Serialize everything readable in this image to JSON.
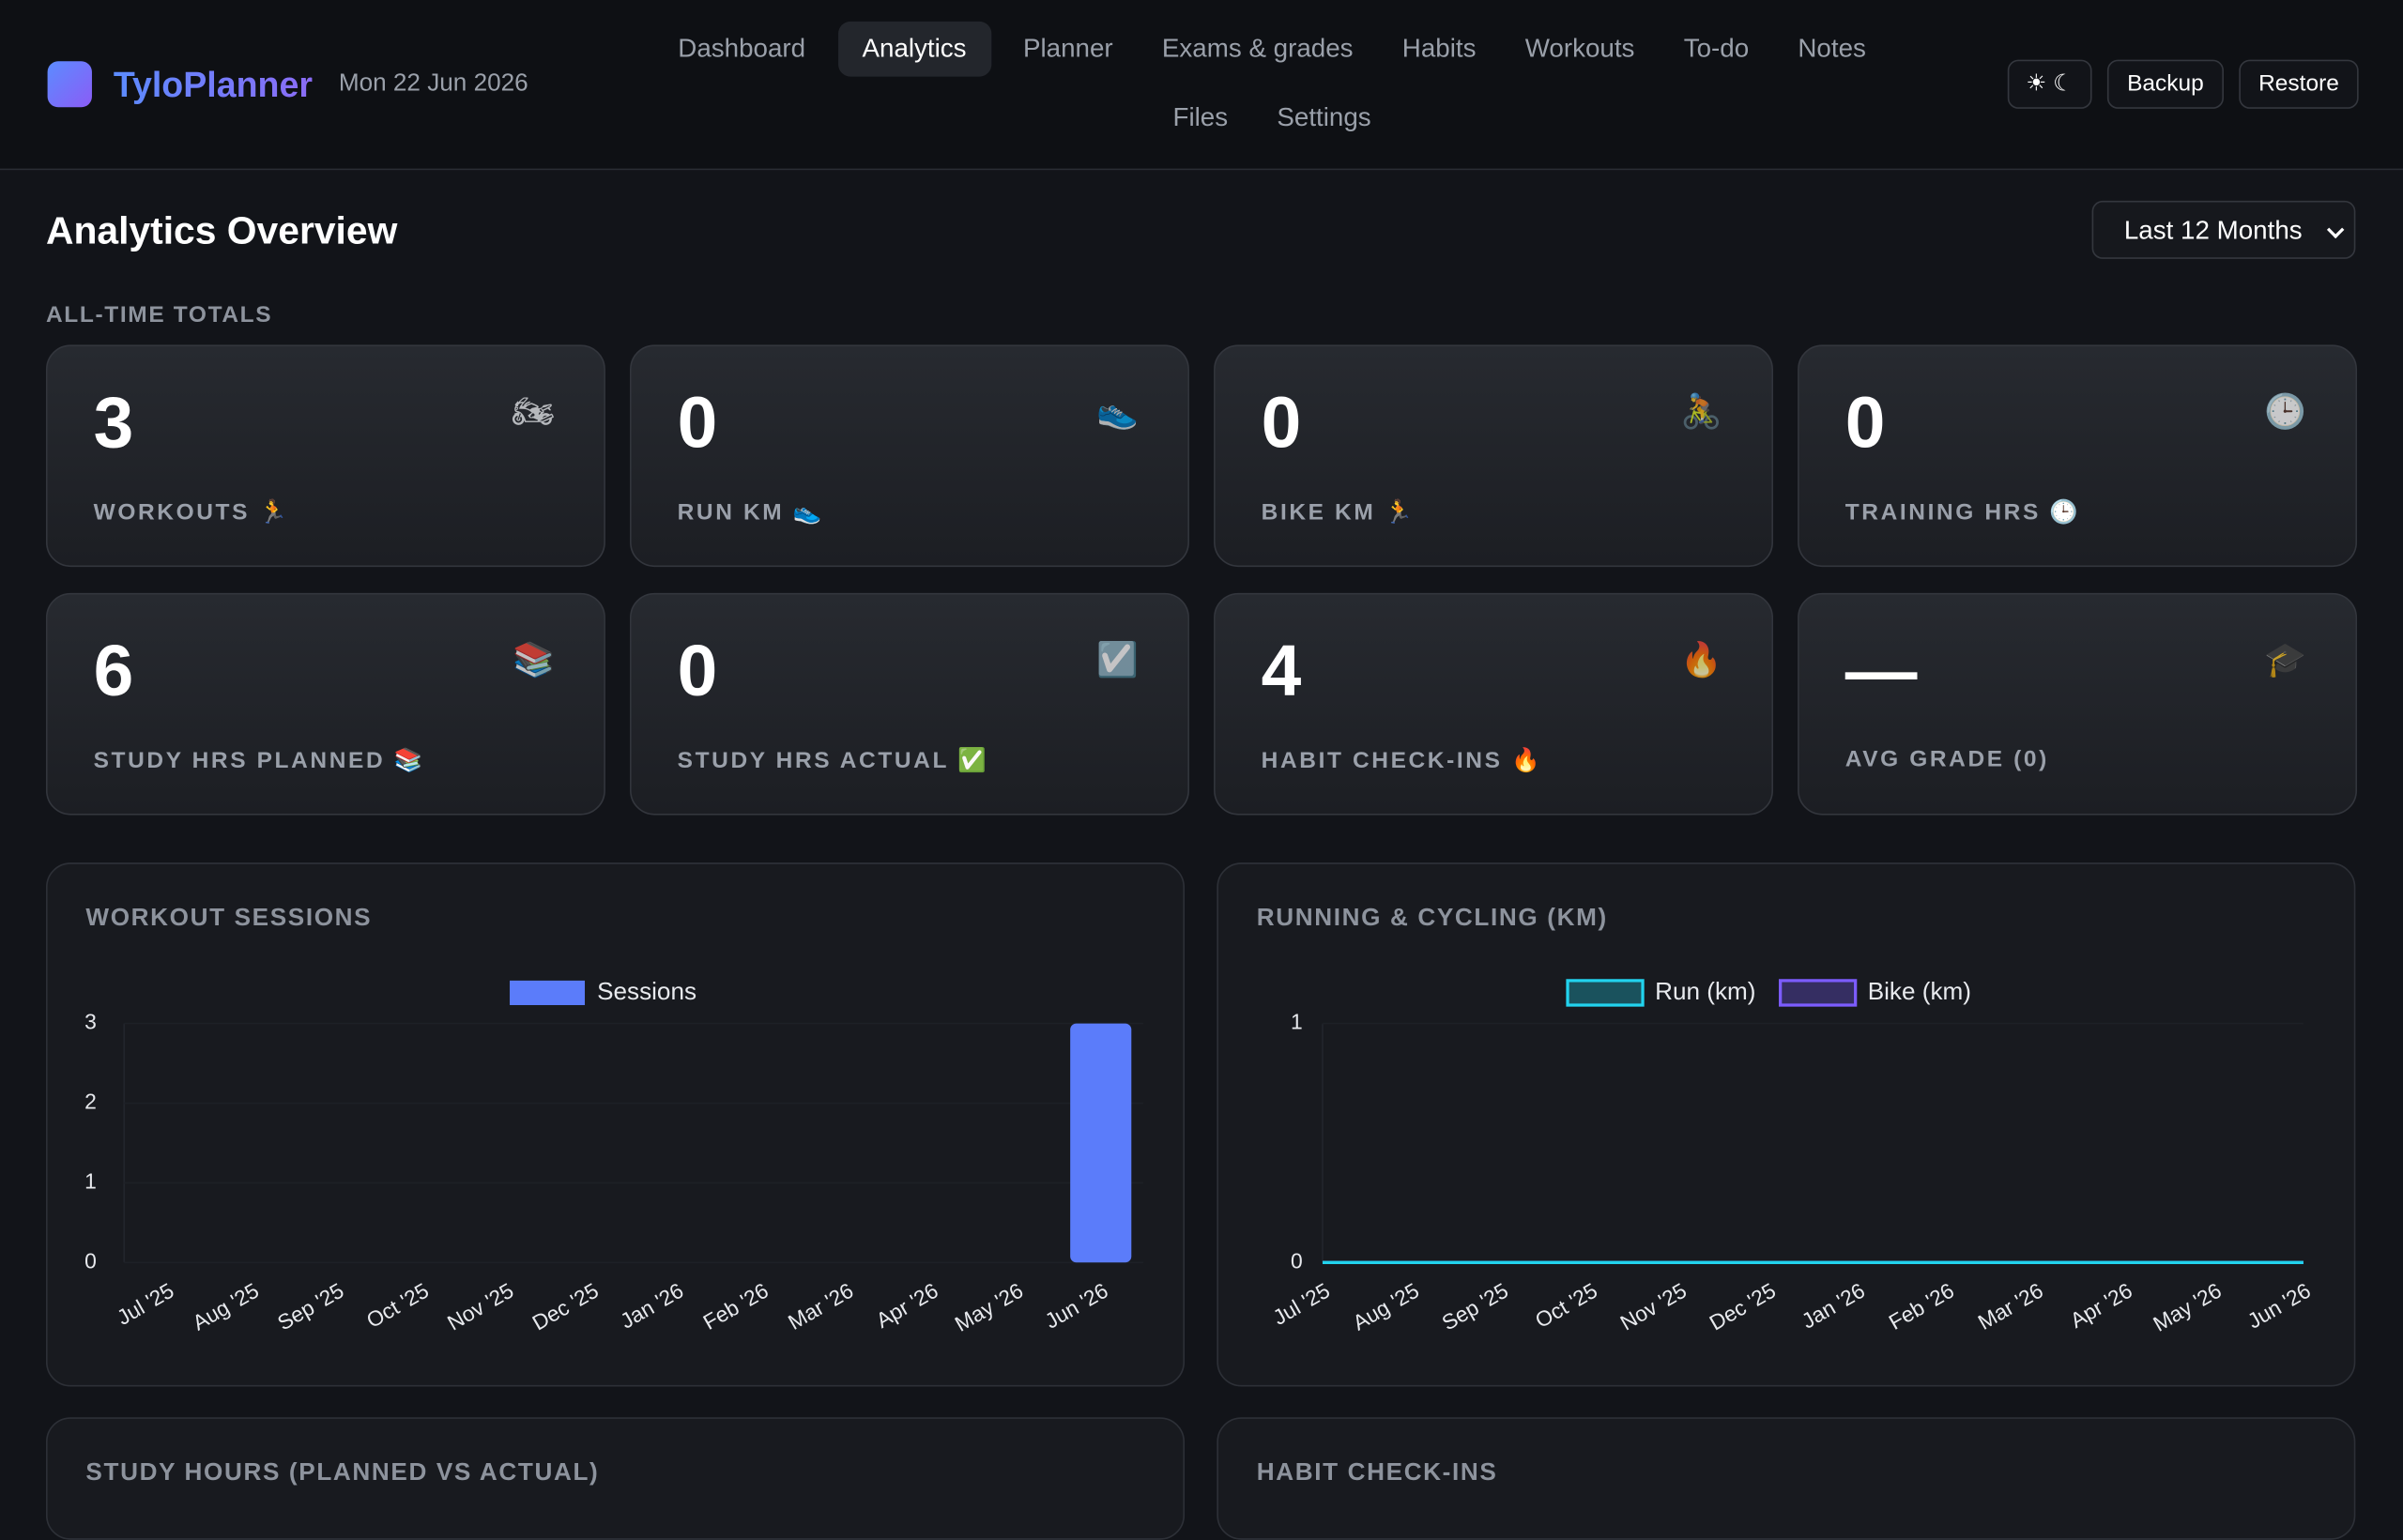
{
  "header": {
    "app_name": "TyloPlanner",
    "date": "Mon 22 Jun 2026",
    "nav": [
      {
        "label": "Dashboard"
      },
      {
        "label": "Analytics",
        "active": true
      },
      {
        "label": "Planner"
      },
      {
        "label": "Exams & grades"
      },
      {
        "label": "Habits"
      },
      {
        "label": "Workouts"
      },
      {
        "label": "To-do"
      },
      {
        "label": "Notes"
      },
      {
        "label": "Files"
      },
      {
        "label": "Settings"
      }
    ],
    "theme_toggle": "☀ ☾",
    "buttons": [
      "Backup",
      "Restore"
    ]
  },
  "page": {
    "title": "Analytics Overview",
    "range": "Last 12 Months",
    "totals_heading": "ALL-TIME TOTALS"
  },
  "totals": [
    {
      "value": 3,
      "label": "WORKOUTS 🏃",
      "icon": "🏍"
    },
    {
      "value": 0,
      "label": "RUN KM 👟",
      "icon": "👟"
    },
    {
      "value": 0,
      "label": "BIKE KM 🏃",
      "icon": "🚴"
    },
    {
      "value": 0,
      "label": "TRAINING HRS 🕒",
      "icon": "🕒"
    },
    {
      "value": 6,
      "label": "STUDY HRS PLANNED 📚",
      "icon": "📚"
    },
    {
      "value": 0,
      "label": "STUDY HRS ACTUAL ✅",
      "icon": "☑️"
    },
    {
      "value": 4,
      "label": "HABIT CHECK-INS 🔥",
      "icon": "🔥"
    },
    {
      "value": "—",
      "label": "AVG GRADE (0)",
      "icon": "🎓"
    }
  ],
  "chart_data": [
    {
      "type": "bar",
      "title": "WORKOUT SESSIONS",
      "categories": [
        "Jul '25",
        "Aug '25",
        "Sep '25",
        "Oct '25",
        "Nov '25",
        "Dec '25",
        "Jan '26",
        "Feb '26",
        "Mar '26",
        "Apr '26",
        "May '26",
        "Jun '26"
      ],
      "series": [
        {
          "name": "Sessions",
          "color": "#5b7cfa",
          "values": [
            0,
            0,
            0,
            0,
            0,
            0,
            0,
            0,
            0,
            0,
            0,
            3
          ]
        }
      ],
      "ylim": [
        0,
        3
      ],
      "yticks": [
        0,
        1,
        2,
        3
      ]
    },
    {
      "type": "line",
      "title": "RUNNING & CYCLING (KM)",
      "categories": [
        "Jul '25",
        "Aug '25",
        "Sep '25",
        "Oct '25",
        "Nov '25",
        "Dec '25",
        "Jan '26",
        "Feb '26",
        "Mar '26",
        "Apr '26",
        "May '26",
        "Jun '26"
      ],
      "series": [
        {
          "name": "Run (km)",
          "color": "#22d3ee",
          "values": [
            0,
            0,
            0,
            0,
            0,
            0,
            0,
            0,
            0,
            0,
            0,
            0
          ]
        },
        {
          "name": "Bike (km)",
          "color": "#7c5cff",
          "values": [
            0,
            0,
            0,
            0,
            0,
            0,
            0,
            0,
            0,
            0,
            0,
            0
          ]
        }
      ],
      "ylim": [
        0,
        1
      ],
      "yticks": [
        0,
        1
      ]
    }
  ],
  "more_sections": [
    "STUDY HOURS (PLANNED VS ACTUAL)",
    "HABIT CHECK-INS"
  ]
}
